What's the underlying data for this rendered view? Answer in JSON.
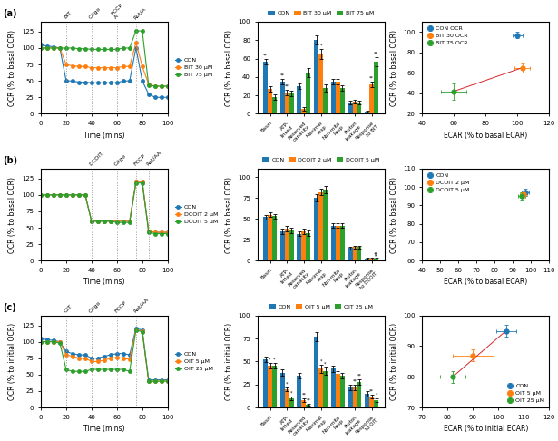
{
  "chart_data": [
    {
      "type": "line",
      "title": "(a)",
      "x_label": "Time (mins)",
      "y_label": "OCR (% to basal OCR)",
      "x": [
        0,
        5,
        10,
        15,
        20,
        25,
        30,
        35,
        40,
        45,
        50,
        55,
        60,
        65,
        70,
        75,
        80,
        85,
        90,
        95,
        100
      ],
      "series": [
        {
          "name": "CON",
          "values": [
            105,
            103,
            102,
            100,
            50,
            50,
            48,
            48,
            47,
            47,
            47,
            47,
            47,
            50,
            50,
            100,
            50,
            30,
            25,
            25,
            25
          ]
        },
        {
          "name": "BIT 30 μM",
          "values": [
            100,
            100,
            100,
            100,
            75,
            73,
            72,
            72,
            70,
            70,
            70,
            70,
            70,
            72,
            72,
            108,
            72,
            45,
            42,
            42,
            42
          ]
        },
        {
          "name": "BIT 75 μM",
          "values": [
            100,
            100,
            100,
            100,
            100,
            100,
            99,
            99,
            98,
            98,
            98,
            98,
            98,
            100,
            100,
            126,
            126,
            43,
            42,
            42,
            42
          ]
        }
      ],
      "marker": "o",
      "xlim": [
        0,
        100
      ],
      "xticks": [
        0,
        20,
        40,
        60,
        80,
        100
      ],
      "ylim": [
        0,
        140
      ],
      "yticks": [
        0,
        25,
        50,
        75,
        100,
        125
      ],
      "legend": "right",
      "annotations": [
        {
          "x": 20,
          "text": "BIT"
        },
        {
          "x": 40,
          "text": "Oligo"
        },
        {
          "x": 60,
          "text": "FCCP\nA"
        },
        {
          "x": 75,
          "text": "Rot/A"
        }
      ]
    },
    {
      "type": "bar",
      "y_label": "OCR (% to basal OCR)",
      "categories": [
        "Basal",
        "ATP-\nlinked",
        "Reserved\ncapacity",
        "Maximal\nresp",
        "Non-mito\nResp",
        "Proton\nleakage",
        "Response\nto BIT"
      ],
      "series": [
        {
          "name": "CON",
          "values": [
            57,
            35,
            30,
            80,
            35,
            12,
            2
          ],
          "errors": [
            3,
            3,
            3,
            5,
            3,
            2,
            1
          ]
        },
        {
          "name": "BIT 30 μM",
          "values": [
            27,
            23,
            5,
            65,
            35,
            13,
            32
          ],
          "errors": [
            3,
            3,
            2,
            5,
            3,
            2,
            3
          ]
        },
        {
          "name": "BIT 75 μM",
          "values": [
            18,
            22,
            45,
            28,
            28,
            12,
            57
          ],
          "errors": [
            3,
            3,
            5,
            4,
            3,
            2,
            5
          ]
        }
      ],
      "ylim": [
        0,
        100
      ],
      "yticks": [
        0,
        20,
        40,
        60,
        80,
        100
      ],
      "legend": "top",
      "annotations": [
        {
          "series": "CON",
          "category": "Basal",
          "text": "**"
        },
        {
          "series": "CON",
          "category": "ATP-\nlinked",
          "text": "**"
        },
        {
          "series": "BIT 30 μM",
          "category": "ATP-\nlinked",
          "text": "**"
        },
        {
          "series": "BIT 30 μM",
          "category": "Maximal\nresp",
          "text": "*"
        },
        {
          "series": "BIT 30 μM",
          "category": "Response\nto BIT",
          "text": "**"
        },
        {
          "series": "BIT 75 μM",
          "category": "Response\nto BIT",
          "text": "**"
        }
      ]
    },
    {
      "type": "scatter",
      "x_label": "ECAR (% to basal ECAR)",
      "y_label": "OCR (% to basal OCR)",
      "series": [
        {
          "name": "CON OCR",
          "x": [
            100
          ],
          "values": [
            97
          ],
          "x_errors": [
            3
          ],
          "errors": [
            3
          ]
        },
        {
          "name": "BIT 30 OCR",
          "x": [
            103
          ],
          "values": [
            65
          ],
          "x_errors": [
            5
          ],
          "errors": [
            5
          ]
        },
        {
          "name": "BIT 75 OCR",
          "x": [
            60
          ],
          "values": [
            42
          ],
          "x_errors": [
            8
          ],
          "errors": [
            8
          ]
        },
        {
          "type": "line",
          "x": [
            60,
            103
          ],
          "values": [
            42,
            65
          ]
        }
      ],
      "marker": "o",
      "xlim": [
        40,
        120
      ],
      "xticks": [
        40,
        60,
        80,
        100,
        120
      ],
      "ylim": [
        20,
        110
      ],
      "yticks": [
        20,
        40,
        60,
        80,
        100
      ],
      "legend": "upper left"
    },
    {
      "type": "line",
      "title": "(b)",
      "x_label": "Time (mins)",
      "y_label": "OCR (% to basal OCR)",
      "x": [
        0,
        5,
        10,
        15,
        20,
        25,
        30,
        35,
        40,
        45,
        50,
        55,
        60,
        65,
        70,
        75,
        80,
        85,
        90,
        95,
        100
      ],
      "series": [
        {
          "name": "CON",
          "values": [
            100,
            100,
            100,
            100,
            100,
            100,
            100,
            100,
            60,
            60,
            60,
            60,
            60,
            60,
            60,
            120,
            120,
            45,
            43,
            43,
            43
          ]
        },
        {
          "name": "DCOIT 2 μM",
          "values": [
            100,
            100,
            100,
            100,
            100,
            100,
            100,
            100,
            60,
            60,
            60,
            60,
            60,
            60,
            60,
            120,
            120,
            45,
            43,
            43,
            43
          ]
        },
        {
          "name": "DCOIT 5 μM",
          "values": [
            100,
            100,
            100,
            100,
            100,
            100,
            100,
            100,
            60,
            60,
            60,
            60,
            58,
            58,
            58,
            118,
            118,
            43,
            41,
            41,
            41
          ]
        }
      ],
      "marker": "o",
      "xlim": [
        0,
        100
      ],
      "xticks": [
        0,
        20,
        40,
        60,
        80,
        100
      ],
      "ylim": [
        0,
        140
      ],
      "yticks": [
        0,
        25,
        50,
        75,
        100,
        125
      ],
      "legend": "right",
      "annotations": [
        {
          "x": 40,
          "text": "DCOIT"
        },
        {
          "x": 60,
          "text": "Oligo"
        },
        {
          "x": 75,
          "text": "FCCP"
        },
        {
          "x": 85,
          "text": "Rot/AA"
        }
      ]
    },
    {
      "type": "bar",
      "y_label": "OCR (% to basal OCR)",
      "categories": [
        "Basal",
        "ATP-\nlinked",
        "Reserved\ncapacity",
        "Maximal\nresp",
        "Non-mito\nResp",
        "Proton\nleakage",
        "Response\nto DCOIT"
      ],
      "series": [
        {
          "name": "CON",
          "values": [
            52,
            35,
            32,
            75,
            42,
            15,
            2
          ],
          "errors": [
            3,
            3,
            3,
            4,
            3,
            2,
            1
          ]
        },
        {
          "name": "DCOIT 2 μM",
          "values": [
            55,
            38,
            35,
            82,
            42,
            16,
            2
          ],
          "errors": [
            3,
            3,
            3,
            4,
            3,
            2,
            1
          ]
        },
        {
          "name": "DCOIT 5 μM",
          "values": [
            53,
            36,
            33,
            85,
            42,
            16,
            2
          ],
          "errors": [
            3,
            3,
            3,
            4,
            3,
            2,
            1
          ]
        }
      ],
      "ylim": [
        0,
        110
      ],
      "yticks": [
        0,
        25,
        50,
        75,
        100
      ],
      "legend": "top",
      "annotations": [
        {
          "series": "DCOIT 5 μM",
          "category": "Response\nto DCOIT",
          "text": "†‡"
        }
      ]
    },
    {
      "type": "scatter",
      "x_label": "ECAR (% to basal ECAR)",
      "y_label": "OCR (% to basal OCR)",
      "series": [
        {
          "name": "CON",
          "x": [
            97
          ],
          "values": [
            97
          ],
          "x_errors": [
            2
          ],
          "errors": [
            2
          ]
        },
        {
          "name": "DCOIT 2 μM",
          "x": [
            96
          ],
          "values": [
            96
          ],
          "x_errors": [
            2
          ],
          "errors": [
            2
          ]
        },
        {
          "name": "DCOIT 5 μM",
          "x": [
            95
          ],
          "values": [
            95
          ],
          "x_errors": [
            2
          ],
          "errors": [
            2
          ]
        }
      ],
      "marker": "o",
      "xlim": [
        40,
        110
      ],
      "xticks": [
        40,
        50,
        60,
        70,
        80,
        90,
        100,
        110
      ],
      "ylim": [
        60,
        110
      ],
      "yticks": [
        60,
        70,
        80,
        90,
        100,
        110
      ],
      "legend": "upper left"
    },
    {
      "type": "line",
      "title": "(c)",
      "x_label": "Time (mins)",
      "y_label": "OCR (% to initial OCR)",
      "x": [
        0,
        5,
        10,
        15,
        20,
        25,
        30,
        35,
        40,
        45,
        50,
        55,
        60,
        65,
        70,
        75,
        80,
        85,
        90,
        95,
        100
      ],
      "series": [
        {
          "name": "CON",
          "values": [
            105,
            103,
            102,
            100,
            85,
            82,
            80,
            80,
            75,
            75,
            78,
            80,
            82,
            82,
            80,
            120,
            118,
            42,
            42,
            42,
            42
          ]
        },
        {
          "name": "OIT 5 μM",
          "values": [
            100,
            100,
            100,
            100,
            80,
            78,
            75,
            75,
            70,
            70,
            72,
            75,
            76,
            75,
            73,
            118,
            116,
            40,
            40,
            40,
            40
          ]
        },
        {
          "name": "OIT 25 μM",
          "values": [
            100,
            100,
            100,
            98,
            58,
            55,
            55,
            55,
            58,
            58,
            58,
            58,
            58,
            58,
            55,
            118,
            115,
            40,
            40,
            40,
            40
          ]
        }
      ],
      "marker": "o",
      "xlim": [
        0,
        100
      ],
      "xticks": [
        0,
        20,
        40,
        60,
        80,
        100
      ],
      "ylim": [
        0,
        140
      ],
      "yticks": [
        0,
        25,
        50,
        75,
        100,
        125
      ],
      "legend": "right",
      "annotations": [
        {
          "x": 20,
          "text": "OIT"
        },
        {
          "x": 40,
          "text": "Oligo"
        },
        {
          "x": 60,
          "text": "FCCP"
        },
        {
          "x": 75,
          "text": "Rot/AA"
        }
      ]
    },
    {
      "type": "bar",
      "y_label": "OCR (% to initial OCR)",
      "categories": [
        "Basal",
        "ATP-\nlinked",
        "Reserved\ncapacity",
        "Maximal\nresp",
        "Non-mito\nResp",
        "Proton\nleakage",
        "Response\nto OIT"
      ],
      "series": [
        {
          "name": "CON",
          "values": [
            52,
            38,
            35,
            77,
            42,
            22,
            15
          ],
          "errors": [
            3,
            3,
            3,
            5,
            3,
            3,
            3
          ]
        },
        {
          "name": "OIT 5 μM",
          "values": [
            45,
            20,
            8,
            42,
            37,
            22,
            12
          ],
          "errors": [
            3,
            2,
            2,
            4,
            3,
            3,
            2
          ]
        },
        {
          "name": "OIT 25 μM",
          "values": [
            45,
            10,
            3,
            40,
            35,
            28,
            8
          ],
          "errors": [
            3,
            2,
            1,
            4,
            3,
            3,
            2
          ]
        }
      ],
      "ylim": [
        0,
        100
      ],
      "yticks": [
        0,
        25,
        50,
        75,
        100
      ],
      "legend": "top",
      "annotations": [
        {
          "series": "OIT 5 μM",
          "category": "Basal",
          "text": "*"
        },
        {
          "series": "OIT 25 μM",
          "category": "Basal",
          "text": "*"
        },
        {
          "series": "OIT 5 μM",
          "category": "ATP-\nlinked",
          "text": "*"
        },
        {
          "series": "OIT 25 μM",
          "category": "ATP-\nlinked",
          "text": "*"
        },
        {
          "series": "OIT 5 μM",
          "category": "Reserved\ncapacity",
          "text": "**"
        },
        {
          "series": "OIT 25 μM",
          "category": "Reserved\ncapacity",
          "text": "**"
        },
        {
          "series": "OIT 5 μM",
          "category": "Maximal\nresp",
          "text": "*"
        },
        {
          "series": "OIT 25 μM",
          "category": "Maximal\nresp",
          "text": "*"
        },
        {
          "series": "OIT 5 μM",
          "category": "Proton\nleakage",
          "text": "**"
        },
        {
          "series": "OIT 25 μM",
          "category": "Proton\nleakage",
          "text": "**"
        },
        {
          "series": "OIT 5 μM",
          "category": "Response\nto OIT",
          "text": "**"
        },
        {
          "series": "OIT 25 μM",
          "category": "Response\nto OIT",
          "text": "*"
        }
      ]
    },
    {
      "type": "scatter",
      "x_label": "ECAR (% to initial ECAR)",
      "y_label": "OCR (% to initial OCR)",
      "series": [
        {
          "name": "CON",
          "x": [
            103
          ],
          "values": [
            95
          ],
          "x_errors": [
            4
          ],
          "errors": [
            2
          ]
        },
        {
          "name": "OIT 5 μM",
          "x": [
            90
          ],
          "values": [
            87
          ],
          "x_errors": [
            8
          ],
          "errors": [
            2
          ]
        },
        {
          "name": "OIT 25 μM",
          "x": [
            82
          ],
          "values": [
            80
          ],
          "x_errors": [
            5
          ],
          "errors": [
            2
          ]
        },
        {
          "type": "line",
          "x": [
            82,
            103
          ],
          "values": [
            80,
            95
          ]
        }
      ],
      "marker": "o",
      "xlim": [
        70,
        120
      ],
      "xticks": [
        70,
        80,
        90,
        100,
        110,
        120
      ],
      "ylim": [
        70,
        100
      ],
      "yticks": [
        70,
        80,
        90,
        100
      ],
      "legend": "lower right"
    }
  ]
}
